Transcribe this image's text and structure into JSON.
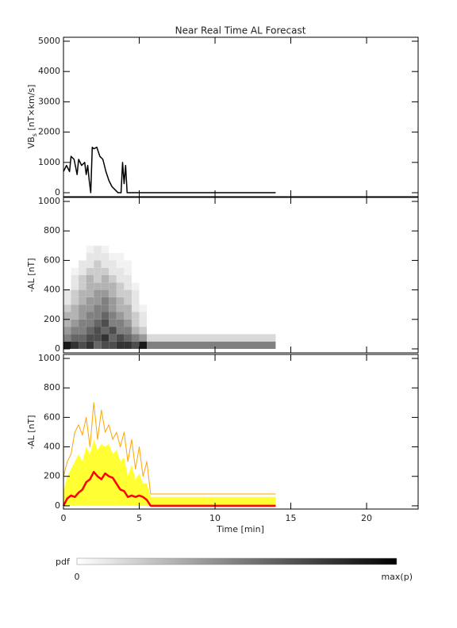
{
  "chart_data": [
    {
      "type": "line",
      "title": "Near Real Time AL Forecast",
      "ylabel": "VB",
      "ylabel_sub": "s",
      "ylabel_unit": " [nT×km/s]",
      "x": [
        0,
        0.2,
        0.4,
        0.5,
        0.7,
        0.9,
        1.0,
        1.2,
        1.4,
        1.5,
        1.6,
        1.7,
        1.8,
        1.9,
        2.0,
        2.2,
        2.4,
        2.6,
        2.8,
        3.0,
        3.2,
        3.4,
        3.6,
        3.8,
        3.9,
        4.0,
        4.1,
        4.2,
        14
      ],
      "series": [
        {
          "color": "#000000",
          "values": [
            700,
            900,
            700,
            1200,
            1100,
            600,
            1100,
            900,
            1000,
            600,
            900,
            400,
            0,
            1500,
            1450,
            1500,
            1200,
            1100,
            700,
            400,
            200,
            100,
            0,
            0,
            1000,
            300,
            900,
            0,
            0
          ]
        }
      ],
      "xlim": [
        0,
        23.4
      ],
      "ylim": [
        -130,
        5130
      ],
      "xticks": [
        0,
        5,
        10,
        15,
        20
      ],
      "yticks": [
        0,
        1000,
        2000,
        3000,
        4000,
        5000
      ]
    },
    {
      "type": "heatmap",
      "ylabel": "-AL [nT]",
      "x_bins": [
        0,
        0.5,
        1,
        1.5,
        2,
        2.5,
        3,
        3.5,
        4,
        4.5,
        5,
        5.5,
        14
      ],
      "y_bins": [
        0,
        50,
        100,
        150,
        200,
        250,
        300,
        350,
        400,
        450,
        500,
        550,
        600,
        650,
        700
      ],
      "z": [
        [
          0.9,
          0.8,
          0.7,
          0.8,
          0.6,
          0.7,
          0.7,
          0.8,
          0.8,
          0.7,
          0.9,
          0.5
        ],
        [
          0.5,
          0.6,
          0.6,
          0.7,
          0.7,
          0.8,
          0.6,
          0.7,
          0.6,
          0.5,
          0.4,
          0.15
        ],
        [
          0.4,
          0.5,
          0.5,
          0.6,
          0.7,
          0.6,
          0.7,
          0.5,
          0.5,
          0.3,
          0.2,
          0
        ],
        [
          0.3,
          0.4,
          0.5,
          0.5,
          0.6,
          0.7,
          0.5,
          0.5,
          0.4,
          0.2,
          0.1,
          0
        ],
        [
          0.3,
          0.3,
          0.4,
          0.5,
          0.5,
          0.6,
          0.5,
          0.4,
          0.3,
          0.2,
          0.1,
          0
        ],
        [
          0.2,
          0.3,
          0.4,
          0.4,
          0.5,
          0.5,
          0.4,
          0.3,
          0.3,
          0.1,
          0.05,
          0
        ],
        [
          0.1,
          0.2,
          0.3,
          0.4,
          0.4,
          0.5,
          0.4,
          0.3,
          0.2,
          0.1,
          0,
          0
        ],
        [
          0.1,
          0.2,
          0.3,
          0.3,
          0.4,
          0.4,
          0.3,
          0.2,
          0.2,
          0.1,
          0,
          0
        ],
        [
          0,
          0.1,
          0.2,
          0.3,
          0.3,
          0.3,
          0.3,
          0.2,
          0.1,
          0.05,
          0,
          0
        ],
        [
          0,
          0.1,
          0.2,
          0.3,
          0.2,
          0.3,
          0.2,
          0.1,
          0.1,
          0,
          0,
          0
        ],
        [
          0,
          0.05,
          0.1,
          0.2,
          0.2,
          0.2,
          0.1,
          0.1,
          0.05,
          0,
          0,
          0
        ],
        [
          0,
          0,
          0.1,
          0.1,
          0.2,
          0.1,
          0.1,
          0.05,
          0.05,
          0,
          0,
          0
        ],
        [
          0,
          0,
          0,
          0.1,
          0.1,
          0.1,
          0.05,
          0.05,
          0,
          0,
          0,
          0
        ],
        [
          0,
          0,
          0,
          0.05,
          0.1,
          0.05,
          0,
          0,
          0,
          0,
          0,
          0
        ]
      ],
      "xlim": [
        0,
        23.4
      ],
      "ylim": [
        -27,
        1027
      ],
      "xticks": [
        0,
        5,
        10,
        15,
        20
      ],
      "yticks": [
        0,
        200,
        400,
        600,
        800,
        1000
      ],
      "colorbar": {
        "label": "pdf",
        "min_label": "0",
        "max_label": "max(p)"
      }
    },
    {
      "type": "band",
      "ylabel": "-AL [nT]",
      "xlabel": "Time [min]",
      "x": [
        0,
        0.25,
        0.5,
        0.75,
        1,
        1.25,
        1.5,
        1.75,
        2,
        2.25,
        2.5,
        2.75,
        3,
        3.25,
        3.5,
        3.75,
        4,
        4.25,
        4.5,
        4.75,
        5,
        5.25,
        5.5,
        5.75,
        14
      ],
      "series": [
        {
          "color": "#ffff00",
          "values": [
            100,
            200,
            250,
            300,
            350,
            300,
            400,
            350,
            450,
            380,
            420,
            400,
            420,
            350,
            380,
            300,
            330,
            200,
            280,
            180,
            220,
            150,
            150,
            60,
            60
          ]
        },
        {
          "color": "#ffa500",
          "values": [
            200,
            300,
            350,
            500,
            550,
            480,
            600,
            400,
            700,
            450,
            650,
            500,
            550,
            450,
            500,
            400,
            500,
            300,
            450,
            250,
            400,
            200,
            300,
            80,
            80
          ]
        },
        {
          "color": "#ff0000",
          "values": [
            0,
            50,
            70,
            60,
            90,
            110,
            160,
            180,
            230,
            200,
            180,
            220,
            200,
            190,
            150,
            110,
            100,
            60,
            70,
            60,
            70,
            60,
            40,
            0,
            0
          ]
        }
      ],
      "xlim": [
        0,
        23.4
      ],
      "ylim": [
        -22,
        1027
      ],
      "xticks": [
        0,
        5,
        10,
        15,
        20
      ],
      "yticks": [
        0,
        200,
        400,
        600,
        800,
        1000
      ]
    }
  ]
}
